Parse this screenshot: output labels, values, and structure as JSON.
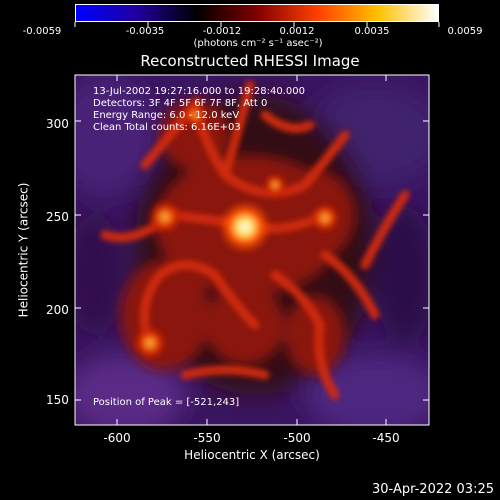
{
  "colorbar": {
    "labels": [
      "-0.0059",
      "-0.0035",
      "-0.0012",
      "0.0012",
      "0.0035",
      "0.0059"
    ],
    "units": "(photons cm⁻² s⁻¹ asec⁻²)",
    "colors": [
      "#0000ff",
      "#2000a0",
      "#000000",
      "#800000",
      "#ff4000",
      "#ffc000",
      "#ffffff"
    ]
  },
  "title": "Reconstructed RHESSI Image",
  "info": {
    "time": "13-Jul-2002 19:27:16.000 to 19:28:40.000",
    "detectors": "Detectors: 3F 4F 5F 6F 7F 8F, Att 0",
    "energy": "Energy Range: 6.0 - 12.0 keV",
    "clean": "Clean     Total counts: 6.16E+03",
    "peak": "Position of Peak = [-521,243]"
  },
  "axes": {
    "xlabel": "Heliocentric X (arcsec)",
    "ylabel": "Heliocentric Y (arcsec)",
    "xticks": [
      "-600",
      "-550",
      "-500",
      "-450"
    ],
    "yticks": [
      "300",
      "250",
      "200",
      "150"
    ]
  },
  "footer": "30-Apr-2022 03:25"
}
